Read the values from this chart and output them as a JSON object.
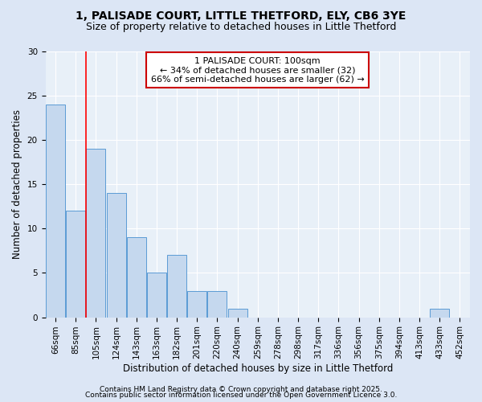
{
  "title_line1": "1, PALISADE COURT, LITTLE THETFORD, ELY, CB6 3YE",
  "title_line2": "Size of property relative to detached houses in Little Thetford",
  "categories": [
    "66sqm",
    "85sqm",
    "105sqm",
    "124sqm",
    "143sqm",
    "163sqm",
    "182sqm",
    "201sqm",
    "220sqm",
    "240sqm",
    "259sqm",
    "278sqm",
    "298sqm",
    "317sqm",
    "336sqm",
    "356sqm",
    "375sqm",
    "394sqm",
    "413sqm",
    "433sqm",
    "452sqm"
  ],
  "values": [
    24,
    12,
    19,
    14,
    9,
    5,
    7,
    3,
    3,
    1,
    0,
    0,
    0,
    0,
    0,
    0,
    0,
    0,
    0,
    1,
    0
  ],
  "bar_color": "#c5d8ee",
  "bar_edge_color": "#5b9bd5",
  "bar_linewidth": 0.7,
  "red_line_index": 2,
  "xlabel": "Distribution of detached houses by size in Little Thetford",
  "ylabel": "Number of detached properties",
  "ylim": [
    0,
    30
  ],
  "yticks": [
    0,
    5,
    10,
    15,
    20,
    25,
    30
  ],
  "annotation_title": "1 PALISADE COURT: 100sqm",
  "annotation_line2": "← 34% of detached houses are smaller (32)",
  "annotation_line3": "66% of semi-detached houses are larger (62) →",
  "annotation_box_facecolor": "#ffffff",
  "annotation_border_color": "#cc0000",
  "footer_line1": "Contains HM Land Registry data © Crown copyright and database right 2025.",
  "footer_line2": "Contains public sector information licensed under the Open Government Licence 3.0.",
  "bg_color": "#dce6f5",
  "plot_bg_color": "#e8f0f8",
  "title_fontsize": 10,
  "subtitle_fontsize": 9,
  "axis_label_fontsize": 8.5,
  "tick_fontsize": 7.5,
  "annotation_fontsize": 8,
  "footer_fontsize": 6.5
}
